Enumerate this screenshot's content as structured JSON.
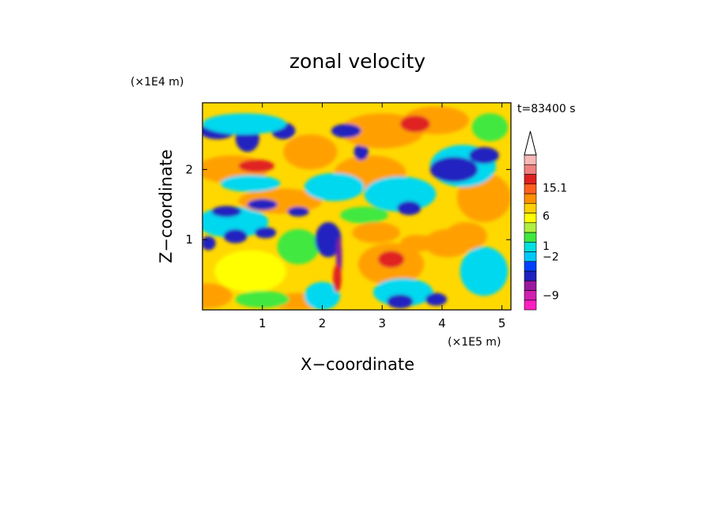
{
  "chart_data": {
    "type": "heatmap",
    "title": "zonal velocity",
    "xlabel": "X−coordinate",
    "ylabel": "Z−coordinate",
    "x_unit": "(×1E5 m)",
    "y_unit": "(×1E4 m)",
    "time_label": "t=83400 s",
    "xlim": [
      0,
      5.15
    ],
    "ylim": [
      0,
      2.95
    ],
    "x_ticks": [
      {
        "value": 1,
        "label": "1"
      },
      {
        "value": 2,
        "label": "2"
      },
      {
        "value": 3,
        "label": "3"
      },
      {
        "value": 4,
        "label": "4"
      },
      {
        "value": 5,
        "label": "5"
      }
    ],
    "y_ticks": [
      {
        "value": 1,
        "label": "1"
      },
      {
        "value": 2,
        "label": "2"
      }
    ],
    "colorbar": {
      "colors": [
        "#ff20c0",
        "#d020b0",
        "#9a18a0",
        "#2020c0",
        "#0040ff",
        "#00c8ff",
        "#00e0e0",
        "#40e840",
        "#b0f040",
        "#ffff00",
        "#ffd000",
        "#ff9000",
        "#ff6020",
        "#e02020",
        "#f08080",
        "#f8b8b8"
      ],
      "labels": [
        {
          "text": "−9",
          "level": 1.5
        },
        {
          "text": "−2",
          "level": 5.5
        },
        {
          "text": "1",
          "level": 6.6
        },
        {
          "text": "6",
          "level": 9.7
        },
        {
          "text": "15.1",
          "level": 12.6
        }
      ]
    },
    "regions": [
      {
        "type": "orange",
        "x": 0.05,
        "y": 0.2,
        "rx": 0.45,
        "ry": 0.18
      },
      {
        "type": "yellow",
        "x": 0.8,
        "y": 0.55,
        "rx": 0.6,
        "ry": 0.3
      },
      {
        "type": "orange",
        "x": 1.6,
        "y": 0.12,
        "rx": 0.5,
        "ry": 0.12
      },
      {
        "type": "green",
        "x": 1.0,
        "y": 0.15,
        "rx": 0.45,
        "ry": 0.12
      },
      {
        "type": "cyan",
        "x": 2.0,
        "y": 0.2,
        "rx": 0.3,
        "ry": 0.2
      },
      {
        "type": "orange",
        "x": 3.15,
        "y": 0.65,
        "rx": 0.55,
        "ry": 0.3
      },
      {
        "type": "red",
        "x": 3.15,
        "y": 0.72,
        "rx": 0.22,
        "ry": 0.12
      },
      {
        "type": "cyan",
        "x": 3.35,
        "y": 0.25,
        "rx": 0.5,
        "ry": 0.2
      },
      {
        "type": "blue",
        "x": 3.3,
        "y": 0.12,
        "rx": 0.22,
        "ry": 0.1
      },
      {
        "type": "blue",
        "x": 3.9,
        "y": 0.15,
        "rx": 0.18,
        "ry": 0.09
      },
      {
        "type": "orange",
        "x": 4.1,
        "y": 0.95,
        "rx": 0.4,
        "ry": 0.2
      },
      {
        "type": "cyan",
        "x": 4.7,
        "y": 0.55,
        "rx": 0.4,
        "ry": 0.35
      },
      {
        "type": "cyan",
        "x": 0.5,
        "y": 1.25,
        "rx": 0.6,
        "ry": 0.22
      },
      {
        "type": "blue",
        "x": 0.55,
        "y": 1.05,
        "rx": 0.2,
        "ry": 0.1
      },
      {
        "type": "blue",
        "x": 0.1,
        "y": 0.95,
        "rx": 0.12,
        "ry": 0.1
      },
      {
        "type": "blue",
        "x": 1.05,
        "y": 1.1,
        "rx": 0.18,
        "ry": 0.08
      },
      {
        "type": "green",
        "x": 1.6,
        "y": 0.9,
        "rx": 0.35,
        "ry": 0.25
      },
      {
        "type": "blue",
        "x": 2.1,
        "y": 1.0,
        "rx": 0.22,
        "ry": 0.25
      },
      {
        "type": "purple",
        "x": 2.28,
        "y": 0.75,
        "rx": 0.05,
        "ry": 0.3
      },
      {
        "type": "red",
        "x": 2.25,
        "y": 0.45,
        "rx": 0.07,
        "ry": 0.2
      },
      {
        "type": "orange",
        "x": 1.3,
        "y": 1.55,
        "rx": 0.7,
        "ry": 0.18
      },
      {
        "type": "blue",
        "x": 0.4,
        "y": 1.4,
        "rx": 0.25,
        "ry": 0.08
      },
      {
        "type": "blue",
        "x": 1.0,
        "y": 1.5,
        "rx": 0.25,
        "ry": 0.08
      },
      {
        "type": "blue",
        "x": 1.6,
        "y": 1.4,
        "rx": 0.18,
        "ry": 0.07
      },
      {
        "type": "orange",
        "x": 0.5,
        "y": 2.0,
        "rx": 0.6,
        "ry": 0.2
      },
      {
        "type": "red",
        "x": 0.9,
        "y": 2.05,
        "rx": 0.3,
        "ry": 0.09
      },
      {
        "type": "cyan",
        "x": 0.8,
        "y": 1.8,
        "rx": 0.5,
        "ry": 0.12
      },
      {
        "type": "blue",
        "x": 0.25,
        "y": 2.55,
        "rx": 0.3,
        "ry": 0.12
      },
      {
        "type": "blue",
        "x": 0.75,
        "y": 2.45,
        "rx": 0.2,
        "ry": 0.2
      },
      {
        "type": "blue",
        "x": 1.35,
        "y": 2.55,
        "rx": 0.2,
        "ry": 0.12
      },
      {
        "type": "cyan",
        "x": 0.7,
        "y": 2.65,
        "rx": 0.7,
        "ry": 0.15
      },
      {
        "type": "orange",
        "x": 1.8,
        "y": 2.25,
        "rx": 0.45,
        "ry": 0.25
      },
      {
        "type": "orange",
        "x": 2.8,
        "y": 1.95,
        "rx": 0.6,
        "ry": 0.25
      },
      {
        "type": "blue",
        "x": 2.65,
        "y": 2.25,
        "rx": 0.12,
        "ry": 0.12
      },
      {
        "type": "cyan",
        "x": 2.2,
        "y": 1.75,
        "rx": 0.5,
        "ry": 0.2
      },
      {
        "type": "orange",
        "x": 3.0,
        "y": 2.55,
        "rx": 0.7,
        "ry": 0.25
      },
      {
        "type": "blue",
        "x": 2.4,
        "y": 2.55,
        "rx": 0.25,
        "ry": 0.1
      },
      {
        "type": "orange",
        "x": 3.9,
        "y": 2.7,
        "rx": 0.55,
        "ry": 0.2
      },
      {
        "type": "red",
        "x": 3.55,
        "y": 2.65,
        "rx": 0.25,
        "ry": 0.12
      },
      {
        "type": "cyan",
        "x": 3.3,
        "y": 1.65,
        "rx": 0.6,
        "ry": 0.25
      },
      {
        "type": "blue",
        "x": 3.45,
        "y": 1.45,
        "rx": 0.2,
        "ry": 0.1
      },
      {
        "type": "orange",
        "x": 4.7,
        "y": 1.6,
        "rx": 0.45,
        "ry": 0.35
      },
      {
        "type": "orange",
        "x": 4.4,
        "y": 1.05,
        "rx": 0.35,
        "ry": 0.2
      },
      {
        "type": "cyan",
        "x": 4.35,
        "y": 2.05,
        "rx": 0.55,
        "ry": 0.3
      },
      {
        "type": "blue",
        "x": 4.2,
        "y": 2.0,
        "rx": 0.4,
        "ry": 0.18
      },
      {
        "type": "blue",
        "x": 4.7,
        "y": 2.2,
        "rx": 0.25,
        "ry": 0.12
      },
      {
        "type": "green",
        "x": 4.8,
        "y": 2.6,
        "rx": 0.3,
        "ry": 0.2
      },
      {
        "type": "green",
        "x": 2.7,
        "y": 1.35,
        "rx": 0.4,
        "ry": 0.12
      },
      {
        "type": "orange",
        "x": 2.9,
        "y": 1.1,
        "rx": 0.4,
        "ry": 0.15
      },
      {
        "type": "orange",
        "x": 3.6,
        "y": 0.95,
        "rx": 0.3,
        "ry": 0.12
      }
    ]
  },
  "palette": {
    "blue": "#2020c0",
    "cyan": "#00d8f0",
    "green": "#40e840",
    "yellow": "#ffff00",
    "orange": "#ffa000",
    "red": "#e02020",
    "purple": "#8020a0",
    "background": "#ffd800"
  }
}
